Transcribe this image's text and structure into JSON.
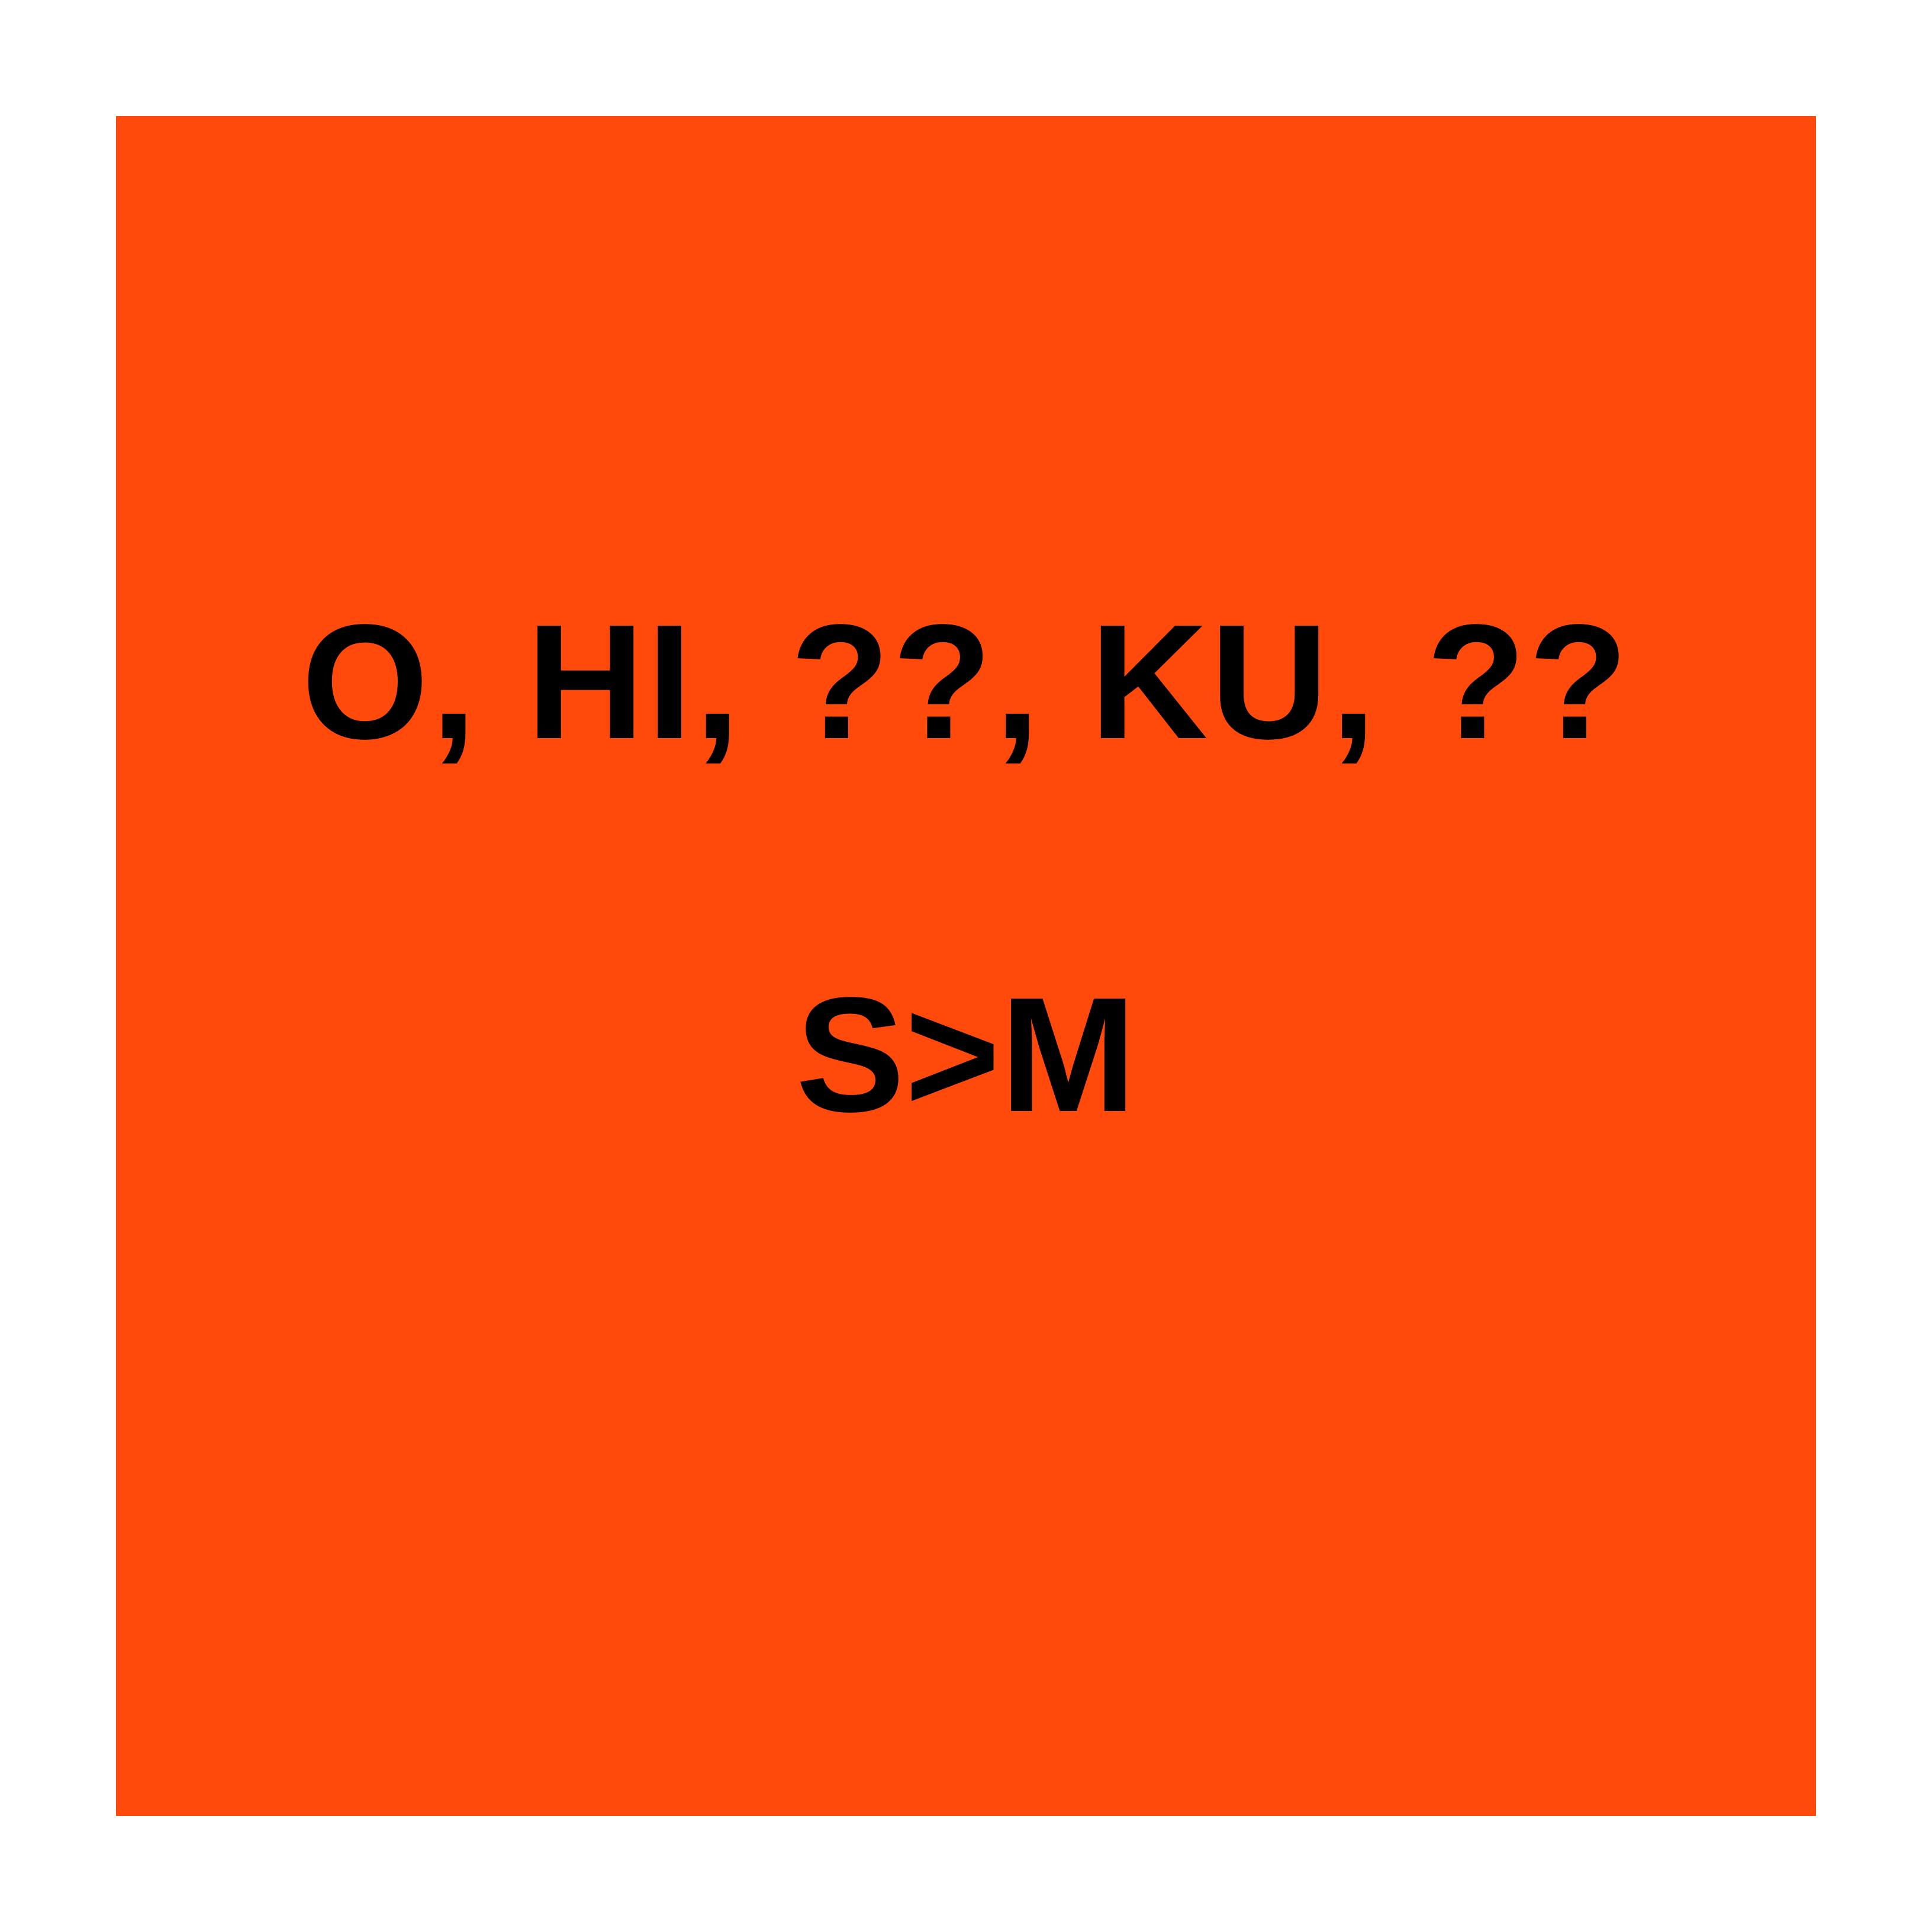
{
  "colors": {
    "page_background": "#FFFFFF",
    "panel_background": "#FF4A0B",
    "text": "#000000"
  },
  "panel": {
    "line1": "O, HI, ??, KU, ??",
    "line2": "S>M"
  }
}
